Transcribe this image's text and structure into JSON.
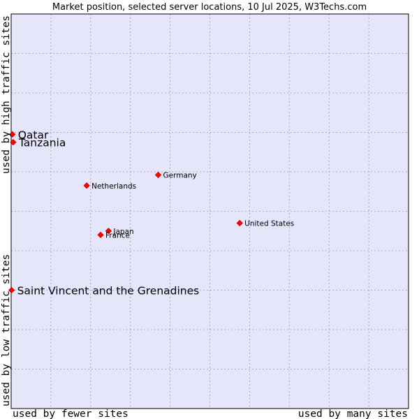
{
  "colors": {
    "plot_background": "#e6e6fa",
    "grid": "#9a9ab0",
    "border": "#000000",
    "marker": "#ff0000",
    "marker_outline": "#b00000"
  },
  "chart_data": {
    "type": "scatter",
    "title": "Market position, selected server locations, 10 Jul 2025, W3Techs.com",
    "xlabel_left": "used by fewer sites",
    "xlabel_right": "used by many sites",
    "ylabel_bottom": "used by low traffic sites",
    "ylabel_top": "used by high traffic sites",
    "xlim": [
      0,
      100
    ],
    "ylim": [
      0,
      100
    ],
    "grid": true,
    "grid_divisions": 10,
    "points": [
      {
        "name": "Qatar",
        "x": 0.3,
        "y": 69.5,
        "emphasis": true
      },
      {
        "name": "Tanzania",
        "x": 0.5,
        "y": 67.5,
        "emphasis": true
      },
      {
        "name": "Saint Vincent and the Grenadines",
        "x": 0.1,
        "y": 30.0,
        "emphasis": true
      },
      {
        "name": "Netherlands",
        "x": 19.0,
        "y": 56.5,
        "emphasis": false
      },
      {
        "name": "Germany",
        "x": 37.0,
        "y": 59.2,
        "emphasis": false
      },
      {
        "name": "United States",
        "x": 57.5,
        "y": 47.0,
        "emphasis": false
      },
      {
        "name": "Japan",
        "x": 24.5,
        "y": 45.0,
        "emphasis": false
      },
      {
        "name": "France",
        "x": 22.5,
        "y": 44.0,
        "emphasis": false
      }
    ]
  }
}
